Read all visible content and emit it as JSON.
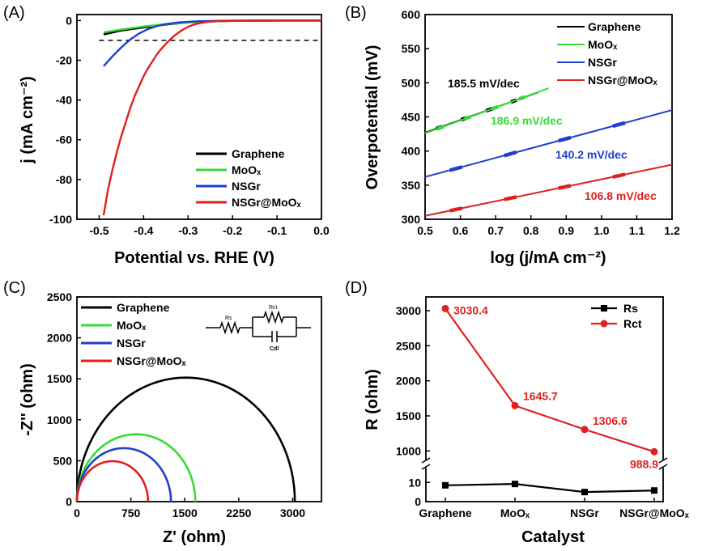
{
  "colors": {
    "graphene": "#000000",
    "moox": "#33dd33",
    "nsgr": "#1f3fcc",
    "nsgr_moox": "#e02020",
    "black": "#000000"
  },
  "chart_data": [
    {
      "id": "A",
      "panel_label": "(A)",
      "type": "line",
      "xlabel": "Potential vs. RHE (V)",
      "ylabel": "j (mA cm⁻²)",
      "xlim": [
        -0.55,
        0.0
      ],
      "ylim": [
        -100,
        3
      ],
      "xticks": [
        -0.5,
        -0.4,
        -0.3,
        -0.2,
        -0.1,
        0.0
      ],
      "xtick_labels": [
        "-0.5",
        "-0.4",
        "-0.3",
        "-0.2",
        "-0.1",
        "0.0"
      ],
      "yticks": [
        0,
        -20,
        -40,
        -60,
        -80,
        -100
      ],
      "ytick_labels": [
        "0",
        "-20",
        "-40",
        "-60",
        "-80",
        "-100"
      ],
      "reference_line": {
        "y": -10,
        "style": "dashed"
      },
      "legend_position": "bottom-right",
      "series": [
        {
          "name": "Graphene",
          "color_key": "graphene",
          "x": [
            -0.49,
            -0.45,
            -0.4,
            -0.35,
            -0.3,
            -0.25,
            -0.2,
            -0.1,
            0.0
          ],
          "y": [
            -7,
            -5,
            -3.5,
            -2,
            -1,
            -0.5,
            -0.2,
            0,
            0
          ]
        },
        {
          "name": "MoOₓ",
          "color_key": "moox",
          "x": [
            -0.49,
            -0.45,
            -0.4,
            -0.35,
            -0.3,
            -0.25,
            -0.2,
            -0.1,
            0.0
          ],
          "y": [
            -6,
            -4.5,
            -3,
            -1.8,
            -1,
            -0.5,
            -0.2,
            0,
            0
          ]
        },
        {
          "name": "NSGr",
          "color_key": "nsgr",
          "x": [
            -0.49,
            -0.47,
            -0.45,
            -0.43,
            -0.41,
            -0.39,
            -0.37,
            -0.35,
            -0.32,
            -0.28,
            -0.22,
            -0.1,
            0.0
          ],
          "y": [
            -23,
            -18,
            -13.5,
            -9.5,
            -6.5,
            -4.3,
            -2.8,
            -1.8,
            -0.9,
            -0.4,
            -0.1,
            0,
            0
          ]
        },
        {
          "name": "NSGr@MoOₓ",
          "color_key": "nsgr_moox",
          "x": [
            -0.49,
            -0.48,
            -0.47,
            -0.46,
            -0.45,
            -0.44,
            -0.43,
            -0.42,
            -0.41,
            -0.4,
            -0.39,
            -0.38,
            -0.37,
            -0.36,
            -0.35,
            -0.34,
            -0.33,
            -0.32,
            -0.31,
            -0.3,
            -0.29,
            -0.28,
            -0.26,
            -0.24,
            -0.2,
            -0.1,
            0.0
          ],
          "y": [
            -98,
            -85,
            -75,
            -66,
            -58,
            -51,
            -44,
            -38,
            -33,
            -28,
            -24,
            -20.5,
            -17,
            -14.2,
            -11.8,
            -9.5,
            -7.5,
            -5.8,
            -4.4,
            -3.2,
            -2.3,
            -1.6,
            -0.8,
            -0.4,
            -0.1,
            0,
            0
          ]
        }
      ]
    },
    {
      "id": "B",
      "panel_label": "(B)",
      "type": "line",
      "xlabel": "log (j/mA cm⁻²)",
      "ylabel": "Overpotential (mV)",
      "xlim": [
        0.5,
        1.2
      ],
      "ylim": [
        300,
        600
      ],
      "xticks": [
        0.5,
        0.6,
        0.7,
        0.8,
        0.9,
        1.0,
        1.1,
        1.2
      ],
      "xtick_labels": [
        "0.5",
        "0.6",
        "0.7",
        "0.8",
        "0.9",
        "1.0",
        "1.1",
        "1.2"
      ],
      "yticks": [
        300,
        350,
        400,
        450,
        500,
        550,
        600
      ],
      "ytick_labels": [
        "300",
        "350",
        "400",
        "450",
        "500",
        "550",
        "600"
      ],
      "legend_position": "top-right",
      "series": [
        {
          "name": "Graphene",
          "color_key": "graphene",
          "x": [
            0.5,
            0.82
          ],
          "y": [
            427,
            486
          ],
          "label": "185.5 mV/dec"
        },
        {
          "name": "MoOₓ",
          "color_key": "moox",
          "x": [
            0.5,
            0.85
          ],
          "y": [
            426,
            492
          ],
          "label": "186.9 mV/dec"
        },
        {
          "name": "NSGr",
          "color_key": "nsgr",
          "x": [
            0.5,
            1.2
          ],
          "y": [
            362,
            460
          ],
          "label": "140.2 mV/dec"
        },
        {
          "name": "NSGr@MoOₓ",
          "color_key": "nsgr_moox",
          "x": [
            0.5,
            1.2
          ],
          "y": [
            305,
            380
          ],
          "label": "106.8 mV/dec"
        }
      ]
    },
    {
      "id": "C",
      "panel_label": "(C)",
      "type": "line",
      "xlabel": "Z' (ohm)",
      "ylabel": "-Z'' (ohm)",
      "xlim": [
        0,
        3400
      ],
      "ylim": [
        0,
        2500
      ],
      "xticks": [
        0,
        750,
        1500,
        2250,
        3000
      ],
      "xtick_labels": [
        "0",
        "750",
        "1500",
        "2250",
        "3000"
      ],
      "yticks": [
        0,
        500,
        1000,
        1500,
        2000,
        2500
      ],
      "ytick_labels": [
        "0",
        "500",
        "1000",
        "1500",
        "2000",
        "2500"
      ],
      "legend_position": "top-left",
      "series": [
        {
          "name": "Graphene",
          "color_key": "graphene",
          "semicircle": {
            "start": 0,
            "end": 3030
          }
        },
        {
          "name": "MoOₓ",
          "color_key": "moox",
          "semicircle": {
            "start": 0,
            "end": 1646
          }
        },
        {
          "name": "NSGr",
          "color_key": "nsgr",
          "semicircle": {
            "start": 0,
            "end": 1307
          }
        },
        {
          "name": "NSGr@MoOₓ",
          "color_key": "nsgr_moox",
          "semicircle": {
            "start": 0,
            "end": 989
          }
        }
      ],
      "circuit_labels": {
        "rs": "Rs",
        "rct": "Rct",
        "cdl": "Cdl"
      }
    },
    {
      "id": "D",
      "panel_label": "(D)",
      "type": "line",
      "xlabel": "Catalyst",
      "ylabel": "R (ohm)",
      "categories": [
        "Graphene",
        "MoOₓ",
        "NSGr",
        "NSGr@MoOₓ"
      ],
      "broken_axis": {
        "lower": {
          "range": [
            0,
            16
          ],
          "ticks": [
            0,
            10
          ],
          "tick_labels": [
            "0",
            "10"
          ]
        },
        "upper": {
          "range": [
            900,
            3150
          ],
          "ticks": [
            1000,
            1500,
            2000,
            2500,
            3000
          ],
          "tick_labels": [
            "1000",
            "1500",
            "2000",
            "2500",
            "3000"
          ]
        }
      },
      "legend_position": "top-right",
      "series": [
        {
          "name": "Rs",
          "color_key": "black",
          "marker": "square",
          "values": [
            8.5,
            9.2,
            5.0,
            5.8
          ]
        },
        {
          "name": "Rct",
          "color_key": "nsgr_moox",
          "marker": "circle",
          "values": [
            3030.4,
            1645.7,
            1306.6,
            988.9
          ],
          "value_labels": [
            "3030.4",
            "1645.7",
            "1306.6",
            "988.9"
          ]
        }
      ]
    }
  ]
}
